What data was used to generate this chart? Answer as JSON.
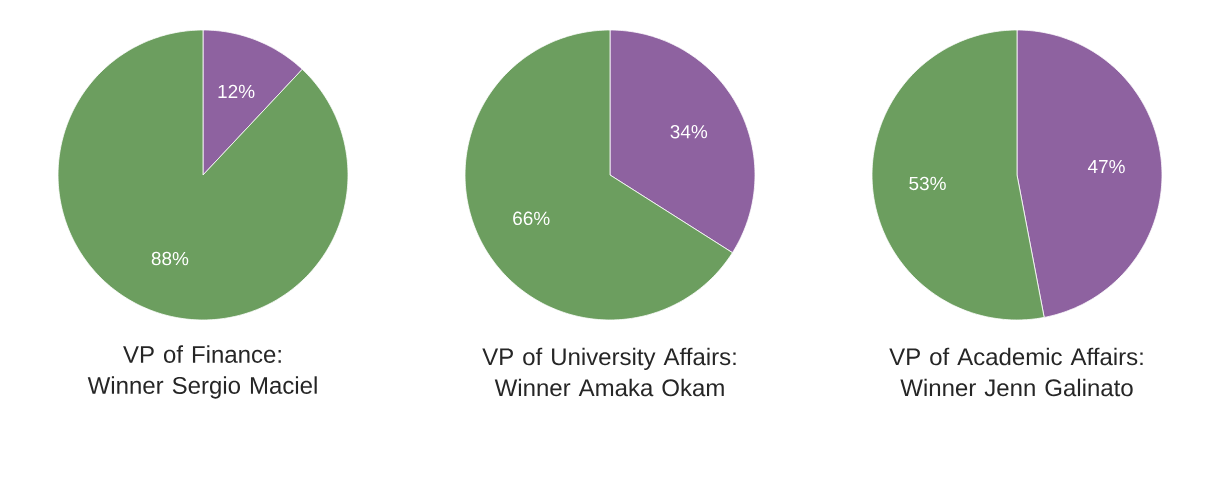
{
  "chart_data": [
    {
      "type": "pie",
      "title": "VP of Finance: Winner Sergio Maciel",
      "categories": [
        null,
        null
      ],
      "values": [
        12,
        88
      ],
      "colors": [
        "#8e62a0",
        "#6c9e5f"
      ],
      "value_labels": [
        "12%",
        "88%"
      ]
    },
    {
      "type": "pie",
      "title": "VP of University Affairs: Winner Amaka Okam",
      "categories": [
        null,
        null
      ],
      "values": [
        34,
        66
      ],
      "colors": [
        "#8e62a0",
        "#6c9e5f"
      ],
      "value_labels": [
        "34%",
        "66%"
      ]
    },
    {
      "type": "pie",
      "title": "VP of Academic Affairs: Winner Jenn Galinato",
      "categories": [
        null,
        null
      ],
      "values": [
        47,
        53
      ],
      "colors": [
        "#8e62a0",
        "#6c9e5f"
      ],
      "value_labels": [
        "47%",
        "53%"
      ]
    }
  ]
}
